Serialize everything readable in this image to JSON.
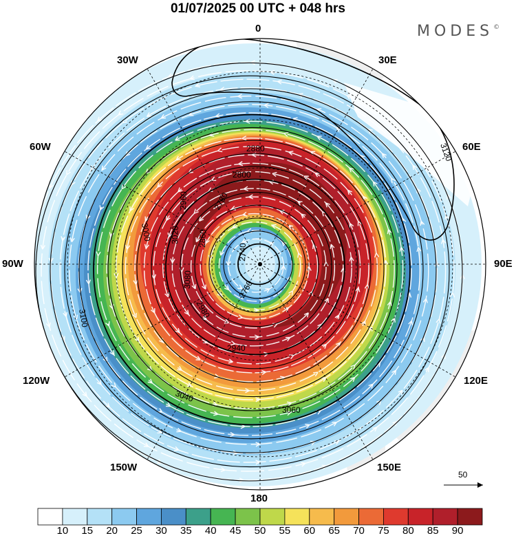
{
  "title": "01/07/2025  00 UTC  + 048 hrs",
  "logo": "MODES",
  "logo_mark": "©",
  "longitude_labels": {
    "lon_0": "0",
    "lon_30e": "30E",
    "lon_60e": "60E",
    "lon_90e": "90E",
    "lon_120e": "120E",
    "lon_150e": "150E",
    "lon_180": "180",
    "lon_150w": "150W",
    "lon_120w": "120W",
    "lon_90w": "90W",
    "lon_60w": "60W",
    "lon_30w": "30W"
  },
  "contour_labels": [
    "3100",
    "3080",
    "3020",
    "2960",
    "2860",
    "2780",
    "2740",
    "2760",
    "2800",
    "2880",
    "2940",
    "2980",
    "3000",
    "3040",
    "3060",
    "3120"
  ],
  "wind_reference": {
    "value": "50"
  },
  "colorbar": {
    "levels": [
      "10",
      "15",
      "20",
      "25",
      "30",
      "35",
      "40",
      "45",
      "50",
      "55",
      "60",
      "65",
      "70",
      "75",
      "80",
      "85",
      "90"
    ],
    "colors": [
      "#ffffff",
      "#d6f0fb",
      "#b4e1f7",
      "#8ccaf0",
      "#5fa6de",
      "#4a8fc8",
      "#3ca08a",
      "#46b552",
      "#7cc34a",
      "#bfd84a",
      "#f5e25a",
      "#f6bb4c",
      "#f29a3c",
      "#eb6a36",
      "#df3a2e",
      "#c82329",
      "#b01f2b",
      "#8c1a1c"
    ]
  }
}
